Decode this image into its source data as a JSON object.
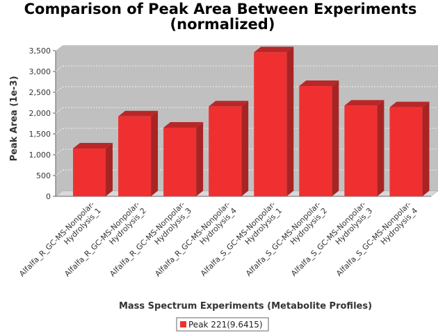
{
  "chart_data": {
    "type": "bar",
    "title_line1": "Comparison of Peak Area Between Experiments",
    "title_line2": "(normalized)",
    "xlabel": "Mass Spectrum Experiments (Metabolite Profiles)",
    "ylabel": "Peak Area (1e-3)",
    "categories": [
      [
        "Alfalfa_R_GC-MS-Nonpolar-",
        "Hydrolysis_1"
      ],
      [
        "Alfalfa_R_GC-MS-Nonpolar-",
        "Hydrolysis_2"
      ],
      [
        "Alfalfa_R_GC-MS-Nonpolar-",
        "Hydrolysis_3"
      ],
      [
        "Alfalfa_R_GC-MS-Nonpolar-",
        "Hydrolysis_4"
      ],
      [
        "Alfalfa_S_GC-MS-Nonpolar-",
        "Hydrolysis_1"
      ],
      [
        "Alfalfa_S_GC-MS-Nonpolar-",
        "Hydrolysis_2"
      ],
      [
        "Alfalfa_S_GC-MS-Nonpolar-",
        "Hydrolysis_3"
      ],
      [
        "Alfalfa_S_GC-MS-Nonpolar-",
        "Hydrolysis_4"
      ]
    ],
    "series": [
      {
        "name": "Peak 221(9.6415)",
        "color": "#f03030",
        "values": [
          1150,
          1920,
          1650,
          2160,
          3460,
          2650,
          2180,
          2140
        ]
      }
    ],
    "yticks": [
      "0",
      "500",
      "1,000",
      "1,500",
      "2,000",
      "2,500",
      "3,000",
      "3,500"
    ],
    "ytick_values": [
      0,
      500,
      1000,
      1500,
      2000,
      2500,
      3000,
      3500
    ],
    "ylim": [
      0,
      3500
    ],
    "grid": true,
    "legend_position": "bottom-center",
    "plot_background": "#c0c0c0"
  }
}
